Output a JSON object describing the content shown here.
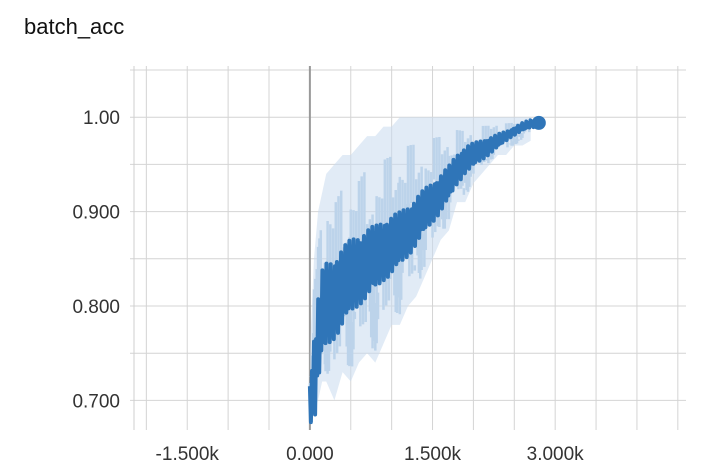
{
  "chart_data": {
    "type": "line",
    "title": "batch_acc",
    "xlabel": "",
    "ylabel": "",
    "xlim": [
      -2200,
      4600
    ],
    "ylim": [
      0.675,
      1.05
    ],
    "grid": true,
    "x_tick_labels": [
      {
        "value": -1500,
        "label": "-1.500k"
      },
      {
        "value": 0,
        "label": "0.000"
      },
      {
        "value": 1500,
        "label": "1.500k"
      },
      {
        "value": 3000,
        "label": "3.000k"
      }
    ],
    "x_minor_ticks": [
      -2000,
      -1000,
      -500,
      500,
      1000,
      2000,
      2500,
      3500,
      4000,
      4500
    ],
    "y_tick_labels": [
      {
        "value": 0.7,
        "label": "0.700"
      },
      {
        "value": 0.8,
        "label": "0.800"
      },
      {
        "value": 0.9,
        "label": "0.900"
      },
      {
        "value": 1.0,
        "label": "1.00"
      }
    ],
    "y_minor_ticks": [
      0.75,
      0.85,
      0.95,
      1.05
    ],
    "series": [
      {
        "role": "smoothed",
        "color": "#2f75b8",
        "x": [
          0,
          50,
          100,
          150,
          200,
          300,
          400,
          500,
          600,
          700,
          800,
          900,
          1000,
          1100,
          1200,
          1300,
          1400,
          1500,
          1600,
          1700,
          1800,
          1900,
          2000,
          2100,
          2200,
          2300,
          2400,
          2500,
          2600,
          2700,
          2800
        ],
        "y": [
          0.68,
          0.72,
          0.76,
          0.79,
          0.8,
          0.81,
          0.82,
          0.83,
          0.84,
          0.845,
          0.85,
          0.86,
          0.865,
          0.87,
          0.88,
          0.89,
          0.9,
          0.91,
          0.92,
          0.93,
          0.945,
          0.955,
          0.96,
          0.965,
          0.97,
          0.975,
          0.98,
          0.985,
          0.99,
          0.993,
          0.994
        ]
      },
      {
        "role": "raw",
        "color": "#c8dbee",
        "x": [
          0,
          50,
          100,
          150,
          200,
          300,
          400,
          500,
          600,
          700,
          800,
          900,
          1000,
          1100,
          1200,
          1300,
          1400,
          1500,
          1600,
          1700,
          1800,
          1900,
          2000,
          2100,
          2200,
          2300,
          2400,
          2500,
          2600,
          2700
        ],
        "y_low": [
          0.68,
          0.69,
          0.7,
          0.72,
          0.72,
          0.7,
          0.73,
          0.72,
          0.74,
          0.75,
          0.74,
          0.76,
          0.78,
          0.78,
          0.8,
          0.81,
          0.83,
          0.85,
          0.87,
          0.88,
          0.91,
          0.91,
          0.93,
          0.94,
          0.95,
          0.96,
          0.96,
          0.97,
          0.97,
          0.975
        ],
        "y_high": [
          0.75,
          0.85,
          0.9,
          0.92,
          0.94,
          0.95,
          0.96,
          0.96,
          0.97,
          0.98,
          0.98,
          0.99,
          0.99,
          1.0,
          1.0,
          1.0,
          1.0,
          1.0,
          1.0,
          1.0,
          1.0,
          1.0,
          1.0,
          1.0,
          1.0,
          1.0,
          1.0,
          1.0,
          1.0,
          1.0
        ]
      }
    ],
    "last_point": {
      "x": 2800,
      "y": 0.994
    }
  }
}
